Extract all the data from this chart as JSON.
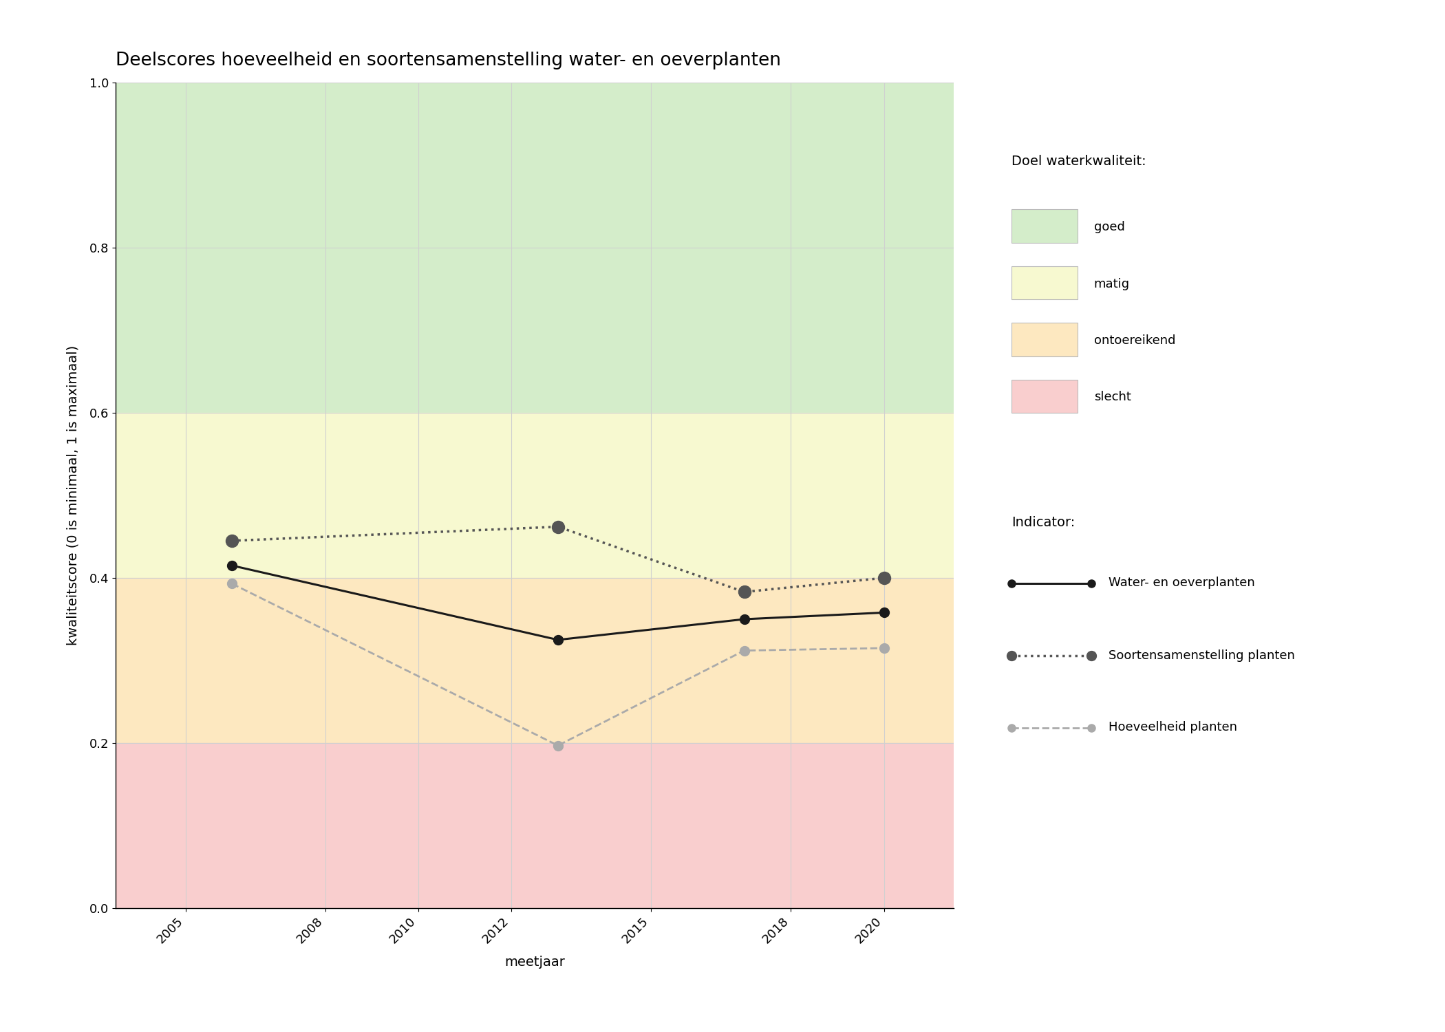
{
  "title": "Deelscores hoeveelheid en soortensamenstelling water- en oeverplanten",
  "xlabel": "meetjaar",
  "ylabel": "kwaliteitscore (0 is minimaal, 1 is maximaal)",
  "ylim": [
    0.0,
    1.0
  ],
  "xlim": [
    2003.5,
    2021.5
  ],
  "xticks": [
    2005,
    2008,
    2010,
    2012,
    2015,
    2018,
    2020
  ],
  "yticks": [
    0.0,
    0.2,
    0.4,
    0.6,
    0.8,
    1.0
  ],
  "background_color": "#ffffff",
  "plot_bg_color": "#ffffff",
  "quality_bands": [
    {
      "name": "goed",
      "ymin": 0.6,
      "ymax": 1.0,
      "color": "#d4edca"
    },
    {
      "name": "matig",
      "ymin": 0.4,
      "ymax": 0.6,
      "color": "#f7f9d0"
    },
    {
      "name": "ontoereikend",
      "ymin": 0.2,
      "ymax": 0.4,
      "color": "#fde8c0"
    },
    {
      "name": "slecht",
      "ymin": 0.0,
      "ymax": 0.2,
      "color": "#f9cece"
    }
  ],
  "series": {
    "water_oeverplanten": {
      "label": "Water- en oeverplanten",
      "x": [
        2006,
        2013,
        2017,
        2020
      ],
      "y": [
        0.415,
        0.325,
        0.35,
        0.358
      ],
      "color": "#1a1a1a",
      "linestyle": "solid",
      "linewidth": 2.2,
      "markersize": 10,
      "marker": "o",
      "zorder": 5
    },
    "soortensamenstelling": {
      "label": "Soortensamenstelling planten",
      "x": [
        2006,
        2013,
        2017,
        2020
      ],
      "y": [
        0.445,
        0.462,
        0.383,
        0.4
      ],
      "color": "#555555",
      "linestyle": "dotted",
      "linewidth": 2.5,
      "markersize": 13,
      "marker": "o",
      "zorder": 4
    },
    "hoeveelheid": {
      "label": "Hoeveelheid planten",
      "x": [
        2006,
        2013,
        2017,
        2020
      ],
      "y": [
        0.393,
        0.197,
        0.312,
        0.315
      ],
      "color": "#aaaaaa",
      "linestyle": "dashed",
      "linewidth": 2.0,
      "markersize": 10,
      "marker": "o",
      "zorder": 3
    }
  },
  "legend_doel_title": "Doel waterkwaliteit:",
  "legend_doel_items": [
    {
      "label": "goed",
      "color": "#d4edca"
    },
    {
      "label": "matig",
      "color": "#f7f9d0"
    },
    {
      "label": "ontoereikend",
      "color": "#fde8c0"
    },
    {
      "label": "slecht",
      "color": "#f9cece"
    }
  ],
  "legend_indicator_title": "Indicator:",
  "grid_color": "#d0d0d0",
  "grid_linewidth": 0.8,
  "title_fontsize": 19,
  "axis_label_fontsize": 14,
  "tick_fontsize": 13,
  "legend_fontsize": 13,
  "legend_title_fontsize": 14
}
